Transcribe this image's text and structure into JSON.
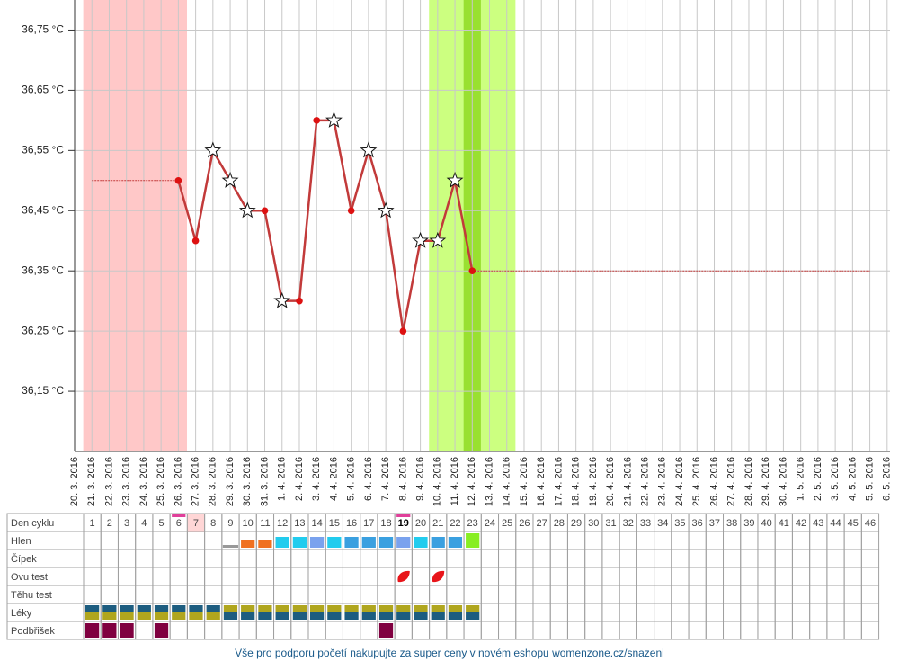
{
  "chart_data": {
    "type": "line",
    "categories": [
      "20. 3. 2016",
      "21. 3. 2016",
      "22. 3. 2016",
      "23. 3. 2016",
      "24. 3. 2016",
      "25. 3. 2016",
      "26. 3. 2016",
      "27. 3. 2016",
      "28. 3. 2016",
      "29. 3. 2016",
      "30. 3. 2016",
      "31. 3. 2016",
      "1. 4. 2016",
      "2. 4. 2016",
      "3. 4. 2016",
      "4. 4. 2016",
      "5. 4. 2016",
      "6. 4. 2016",
      "7. 4. 2016",
      "8. 4. 2016",
      "9. 4. 2016",
      "10. 4. 2016",
      "11. 4. 2016",
      "12. 4. 2016",
      "13. 4. 2016",
      "14. 4. 2016",
      "15. 4. 2016",
      "16. 4. 2016",
      "17. 4. 2016",
      "18. 4. 2016",
      "19. 4. 2016",
      "20. 4. 2016",
      "21. 4. 2016",
      "22. 4. 2016",
      "23. 4. 2016",
      "24. 4. 2016",
      "25. 4. 2016",
      "26. 4. 2016",
      "27. 4. 2016",
      "28. 4. 2016",
      "29. 4. 2016",
      "30. 4. 2016",
      "1. 5. 2016",
      "2. 5. 2016",
      "3. 5. 2016",
      "4. 5. 2016",
      "5. 5. 2016",
      "6. 5. 2016"
    ],
    "values": [
      null,
      null,
      null,
      null,
      null,
      null,
      36.5,
      36.4,
      36.55,
      36.5,
      36.45,
      36.45,
      36.3,
      36.3,
      36.6,
      36.6,
      36.45,
      36.55,
      36.45,
      36.25,
      36.4,
      36.4,
      36.5,
      36.35,
      null,
      null,
      null,
      null,
      null,
      null,
      null,
      null,
      null,
      null,
      null,
      null,
      null,
      null,
      null,
      null,
      null,
      null,
      null,
      null,
      null,
      null,
      null,
      null
    ],
    "markers": [
      null,
      null,
      null,
      null,
      null,
      null,
      "dot",
      "dot",
      "star",
      "star",
      "star",
      "dot",
      "star",
      "dot",
      "dot",
      "star",
      "dot",
      "star",
      "star",
      "dot",
      "star",
      "star",
      "star",
      "dot",
      null,
      null,
      null,
      null,
      null,
      null,
      null,
      null,
      null,
      null,
      null,
      null,
      null,
      null,
      null,
      null,
      null,
      null,
      null,
      null,
      null,
      null,
      null,
      null
    ],
    "color": "#c23a3a",
    "dot_color": "#dd1111",
    "projection_range": [
      1,
      46
    ],
    "bands": [
      {
        "from": 1,
        "to": 6,
        "color": "#ffc8c8"
      },
      {
        "from": 21,
        "to": 25,
        "color": "#ccff80"
      },
      {
        "from": 23,
        "to": 23,
        "color": "#99e030"
      }
    ],
    "ylim": [
      36.05,
      36.8
    ],
    "yticks": [
      {
        "value": 36.15,
        "label": "36,15 °C"
      },
      {
        "value": 36.25,
        "label": "36,25 °C"
      },
      {
        "value": 36.35,
        "label": "36,35 °C"
      },
      {
        "value": 36.45,
        "label": "36,45 °C"
      },
      {
        "value": 36.55,
        "label": "36,55 °C"
      },
      {
        "value": 36.65,
        "label": "36,65 °C"
      },
      {
        "value": 36.75,
        "label": "36,75 °C"
      }
    ],
    "grid": true
  },
  "cycle_table": {
    "row_labels": [
      "Den cyklu",
      "Hlen",
      "Čípek",
      "Ovu test",
      "Těhu test",
      "Léky",
      "Podbřišek"
    ],
    "days": [
      1,
      2,
      3,
      4,
      5,
      6,
      7,
      8,
      9,
      10,
      11,
      12,
      13,
      14,
      15,
      16,
      17,
      18,
      19,
      20,
      21,
      22,
      23,
      24,
      25,
      26,
      27,
      28,
      29,
      30,
      31,
      32,
      33,
      34,
      35,
      36,
      37,
      38,
      39,
      40,
      41,
      42,
      43,
      44,
      45,
      46
    ],
    "marked_days": [
      6,
      19
    ],
    "marked_color": "#e0409a",
    "pink_day": 7,
    "pink_color": "#ffd6d6",
    "bold_day": 19,
    "hlen": [
      {
        "day": 9,
        "color": "#999999",
        "size": "thin"
      },
      {
        "day": 10,
        "color": "#f07020",
        "size": "short"
      },
      {
        "day": 11,
        "color": "#f07020",
        "size": "short"
      },
      {
        "day": 12,
        "color": "#22ccee",
        "size": "tall"
      },
      {
        "day": 13,
        "color": "#22ccee",
        "size": "tall"
      },
      {
        "day": 14,
        "color": "#7aa2ee",
        "size": "tall"
      },
      {
        "day": 15,
        "color": "#22ccee",
        "size": "tall"
      },
      {
        "day": 16,
        "color": "#3aa0e0",
        "size": "tall"
      },
      {
        "day": 17,
        "color": "#3aa0e0",
        "size": "tall"
      },
      {
        "day": 18,
        "color": "#3aa0e0",
        "size": "tall"
      },
      {
        "day": 19,
        "color": "#7aa2ee",
        "size": "tall"
      },
      {
        "day": 20,
        "color": "#22ccee",
        "size": "tall"
      },
      {
        "day": 21,
        "color": "#3aa0e0",
        "size": "tall"
      },
      {
        "day": 22,
        "color": "#3aa0e0",
        "size": "tall"
      },
      {
        "day": 23,
        "color": "#88ee22",
        "size": "full"
      }
    ],
    "ovu_test_days": [
      19,
      21
    ],
    "ovu_color": "#e8151a",
    "leky": [
      {
        "days": [
          1,
          2,
          3,
          4,
          5,
          6,
          7,
          8
        ],
        "top": "#1d5d80",
        "bottom": "#b0a61e"
      },
      {
        "days": [
          9,
          10,
          11,
          12,
          13,
          14,
          15,
          16,
          17,
          18,
          19,
          20,
          21,
          22,
          23
        ],
        "top": "#b0a61e",
        "bottom": "#1d5d80"
      }
    ],
    "podbrisek_days": [
      1,
      2,
      3,
      5,
      18
    ],
    "podbrisek_color": "#800040"
  },
  "footer": "Vše pro podporu početí nakupujte za super ceny v novém eshopu womenzone.cz/snazeni"
}
